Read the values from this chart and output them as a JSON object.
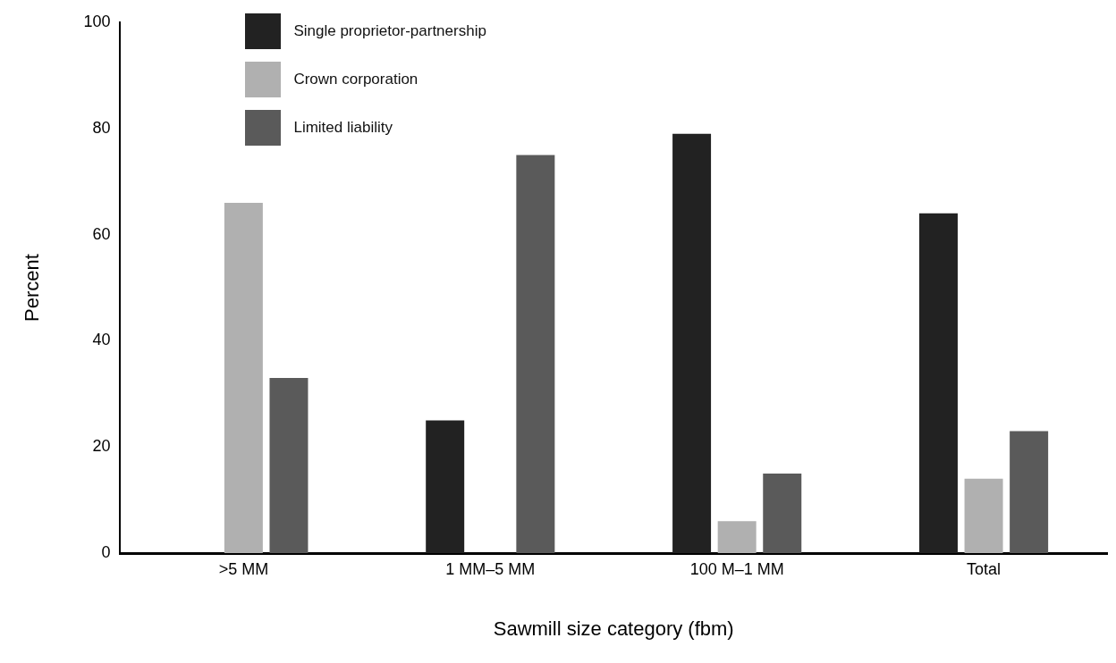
{
  "chart_data": {
    "type": "bar",
    "xlabel": "Sawmill size category (fbm)",
    "ylabel": "Percent",
    "categories": [
      ">5 MM",
      "1 MM–5 MM",
      "100 M–1 MM",
      "Total"
    ],
    "series": [
      {
        "name": "Single proprietor-partnership",
        "color": "#222222",
        "values": [
          0,
          25,
          79,
          64
        ]
      },
      {
        "name": "Crown corporation",
        "color": "#b0b0b0",
        "values": [
          66,
          0,
          6,
          14
        ]
      },
      {
        "name": "Limited liability",
        "color": "#5a5a5a",
        "values": [
          33,
          75,
          15,
          23
        ]
      }
    ],
    "ylim": [
      0,
      100
    ],
    "yticks": [
      0,
      20,
      40,
      60,
      80,
      100
    ],
    "grid": false,
    "legend": "top left"
  }
}
